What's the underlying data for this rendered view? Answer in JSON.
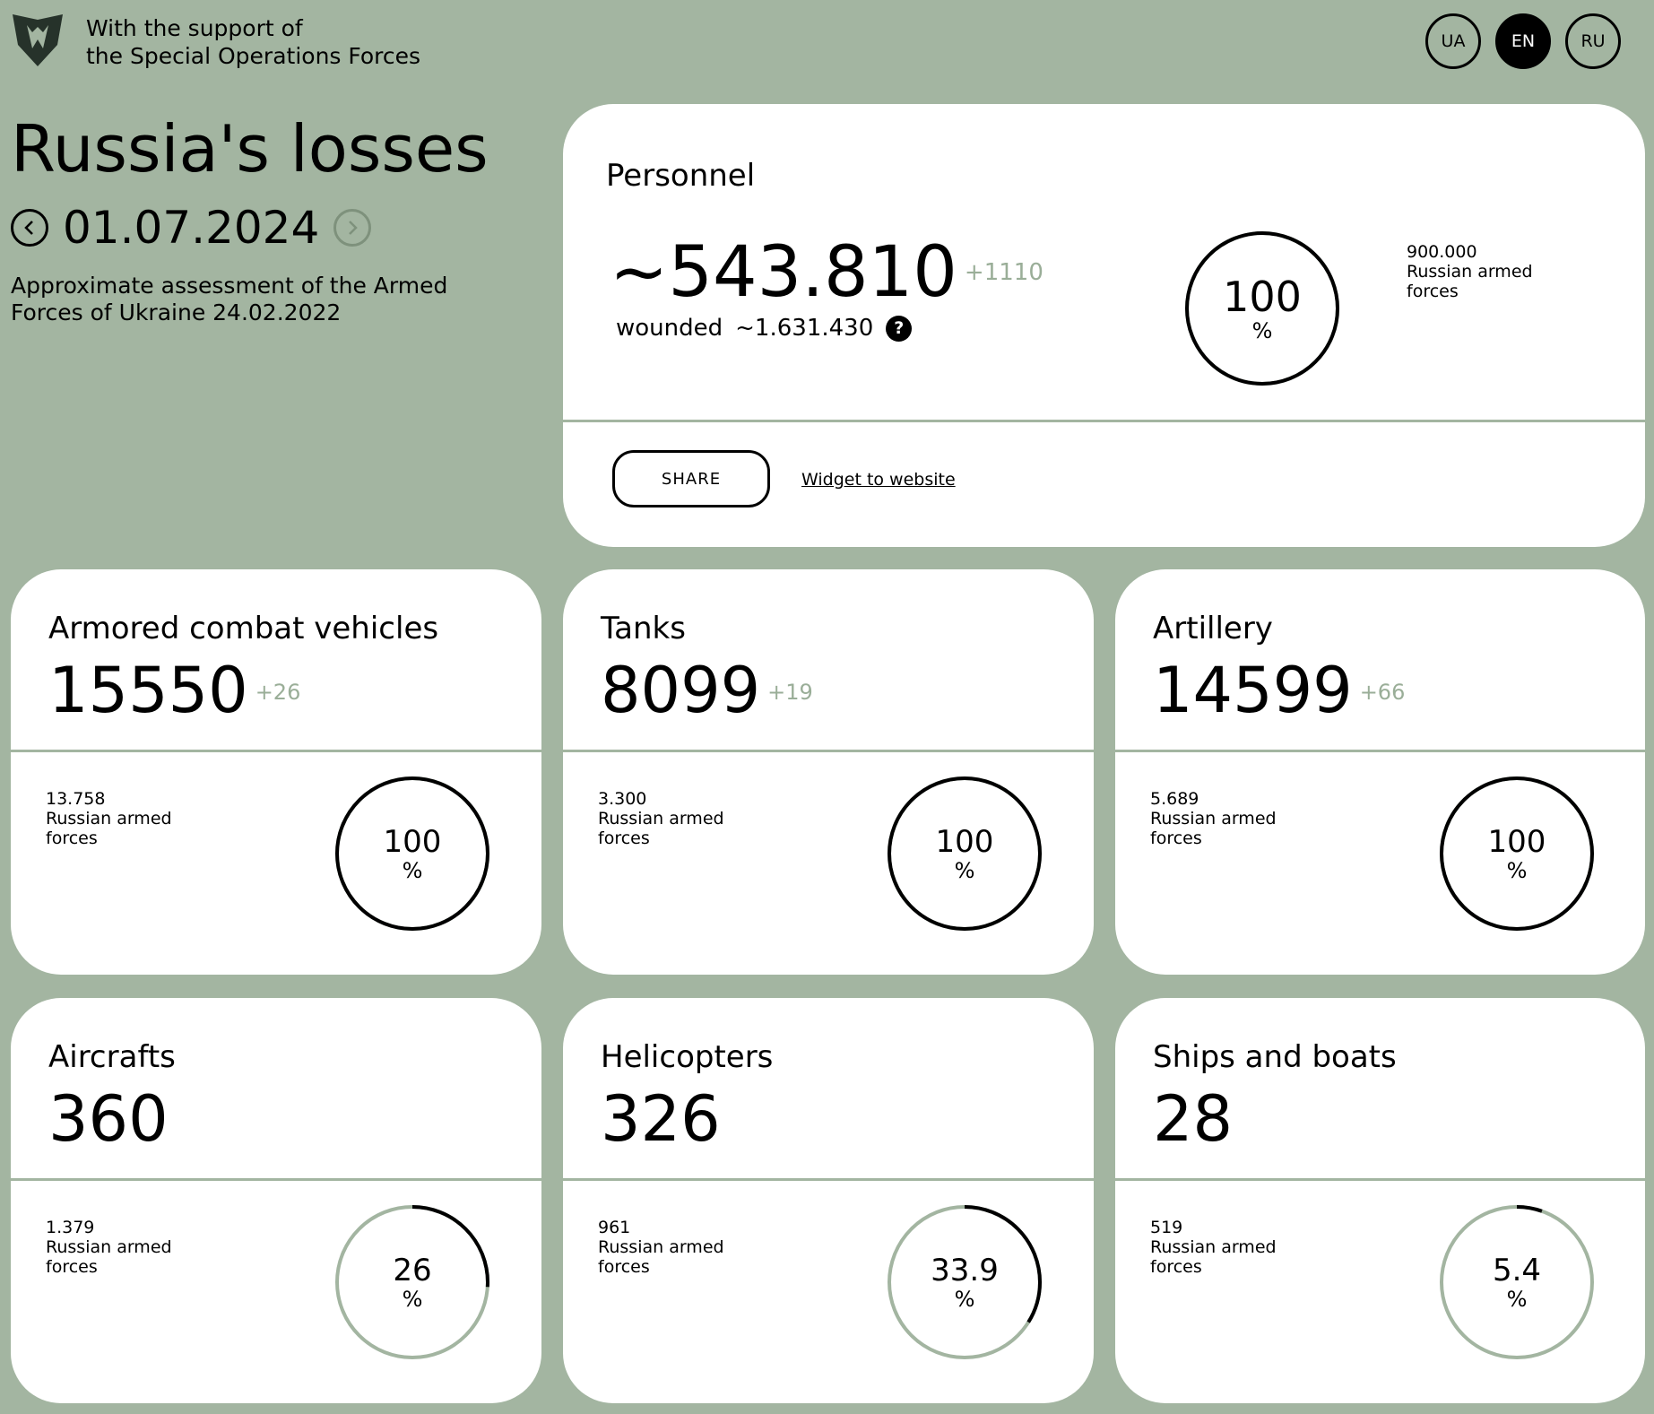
{
  "header": {
    "support_line1": "With the support of",
    "support_line2": "the Special Operations Forces",
    "languages": [
      {
        "label": "UA",
        "active": false
      },
      {
        "label": "EN",
        "active": true
      },
      {
        "label": "RU",
        "active": false
      }
    ]
  },
  "page": {
    "title": "Russia's losses",
    "date": "01.07.2024",
    "assessment": "Approximate assessment of the Armed Forces of Ukraine 24.02.2022"
  },
  "personnel": {
    "label": "Personnel",
    "value": "~543.810",
    "delta": "+1110",
    "wounded_label": "wounded",
    "wounded_value": "~1.631.430",
    "help_icon": "?",
    "percent": "100",
    "percent_sign": "%",
    "percent_fraction": 1.0,
    "total_value": "900.000",
    "total_label": "Russian armed forces",
    "share_label": "SHARE",
    "widget_label": "Widget to website"
  },
  "cards": [
    {
      "label": "Armored combat vehicles",
      "value": "15550",
      "delta": "+26",
      "total": "13.758",
      "total_label": "Russian armed forces",
      "percent": "100",
      "fraction": 1.0
    },
    {
      "label": "Tanks",
      "value": "8099",
      "delta": "+19",
      "total": "3.300",
      "total_label": "Russian armed forces",
      "percent": "100",
      "fraction": 1.0
    },
    {
      "label": "Artillery",
      "value": "14599",
      "delta": "+66",
      "total": "5.689",
      "total_label": "Russian armed forces",
      "percent": "100",
      "fraction": 1.0
    },
    {
      "label": "Aircrafts",
      "value": "360",
      "delta": "",
      "total": "1.379",
      "total_label": "Russian armed forces",
      "percent": "26",
      "fraction": 0.26
    },
    {
      "label": "Helicopters",
      "value": "326",
      "delta": "",
      "total": "961",
      "total_label": "Russian armed forces",
      "percent": "33.9",
      "fraction": 0.339
    },
    {
      "label": "Ships and boats",
      "value": "28",
      "delta": "",
      "total": "519",
      "total_label": "Russian armed forces",
      "percent": "5.4",
      "fraction": 0.054
    }
  ],
  "colors": {
    "background": "#a3b5a1",
    "card": "#ffffff",
    "ring_track": "#a3b5a1",
    "ring_progress": "#000000",
    "delta": "#9aae98"
  }
}
